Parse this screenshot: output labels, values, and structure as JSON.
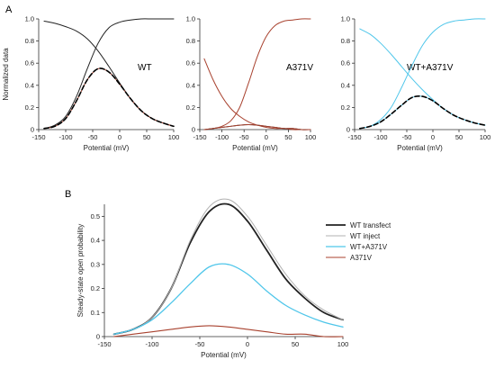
{
  "panel_labels": [
    "A",
    "B"
  ],
  "colors": {
    "axis": "#333333",
    "wt": "#222222",
    "dashed": "#000000",
    "a371v": "#a8412e",
    "wt_a371v": "#4fc6ea",
    "wt_inject": "#b0b0b0"
  },
  "chart_data": [
    {
      "type": "line",
      "panel": "A-1",
      "annotation": "WT",
      "xlabel": "Potential (mV)",
      "ylabel": "Normalized data",
      "xlim": [
        -150,
        100
      ],
      "ylim": [
        0,
        1.0
      ],
      "xticks": [
        -150,
        -100,
        -50,
        0,
        50,
        100
      ],
      "yticks": [
        0,
        0.2,
        0.4,
        0.6,
        0.8,
        1.0
      ],
      "xtick_labels": [
        "-150",
        "-100",
        "-50",
        "0",
        "50",
        "100"
      ],
      "ytick_labels": [
        "0",
        "0.2",
        "0.4",
        "0.6",
        "0.8",
        "1.0"
      ],
      "x": [
        -140,
        -120,
        -100,
        -80,
        -60,
        -40,
        -20,
        0,
        20,
        40,
        60,
        80,
        100
      ],
      "series": [
        {
          "values": [
            0.01,
            0.04,
            0.12,
            0.3,
            0.55,
            0.78,
            0.92,
            0.97,
            0.99,
            1.0,
            1.0,
            1.0,
            1.0
          ],
          "color": "#222222",
          "style": "solid"
        },
        {
          "values": [
            0.98,
            0.96,
            0.93,
            0.89,
            0.82,
            0.71,
            0.57,
            0.42,
            0.28,
            0.17,
            0.1,
            0.06,
            0.03
          ],
          "color": "#222222",
          "style": "solid"
        },
        {
          "values": [
            0.01,
            0.03,
            0.1,
            0.26,
            0.45,
            0.55,
            0.52,
            0.41,
            0.28,
            0.17,
            0.1,
            0.06,
            0.03
          ],
          "color": "#a8412e",
          "style": "solid"
        },
        {
          "values": [
            0.01,
            0.03,
            0.1,
            0.26,
            0.45,
            0.55,
            0.52,
            0.41,
            0.28,
            0.17,
            0.1,
            0.06,
            0.03
          ],
          "color": "#000000",
          "style": "dashed"
        }
      ]
    },
    {
      "type": "line",
      "panel": "A-2",
      "annotation": "A371V",
      "xlabel": "Potential (mV)",
      "ylabel": "",
      "xlim": [
        -150,
        100
      ],
      "ylim": [
        0,
        1.0
      ],
      "xticks": [
        -150,
        -100,
        -50,
        0,
        50,
        100
      ],
      "yticks": [
        0,
        0.2,
        0.4,
        0.6,
        0.8,
        1.0
      ],
      "xtick_labels": [
        "-150",
        "-100",
        "-50",
        "0",
        "50",
        "100"
      ],
      "ytick_labels": [
        "0",
        "0.2",
        "0.4",
        "0.6",
        "0.8",
        "1.0"
      ],
      "x": [
        -140,
        -120,
        -100,
        -80,
        -60,
        -40,
        -20,
        0,
        20,
        40,
        60,
        80,
        100
      ],
      "series": [
        {
          "values": [
            0.0,
            0.01,
            0.03,
            0.08,
            0.2,
            0.42,
            0.66,
            0.84,
            0.94,
            0.98,
            0.99,
            1.0,
            1.0
          ],
          "color": "#a8412e",
          "style": "solid"
        },
        {
          "values": [
            0.64,
            0.45,
            0.3,
            0.19,
            0.12,
            0.07,
            0.04,
            0.02,
            0.01,
            0.01,
            0.0,
            0.0,
            0.0
          ],
          "color": "#a8412e",
          "style": "solid"
        },
        {
          "values": [
            0.0,
            0.01,
            0.02,
            0.03,
            0.04,
            0.045,
            0.04,
            0.03,
            0.02,
            0.01,
            0.01,
            0.0,
            0.0
          ],
          "color": "#222222",
          "style": "solid"
        },
        {
          "values": [
            0.0,
            0.01,
            0.02,
            0.03,
            0.04,
            0.045,
            0.04,
            0.03,
            0.02,
            0.01,
            0.01,
            0.0,
            0.0
          ],
          "color": "#a8412e",
          "style": "solid"
        }
      ]
    },
    {
      "type": "line",
      "panel": "A-3",
      "annotation": "WT+A371V",
      "xlabel": "Potential (mV)",
      "ylabel": "",
      "xlim": [
        -150,
        100
      ],
      "ylim": [
        0,
        1.0
      ],
      "xticks": [
        -150,
        -100,
        -50,
        0,
        50,
        100
      ],
      "yticks": [
        0,
        0.2,
        0.4,
        0.6,
        0.8,
        1.0
      ],
      "xtick_labels": [
        "-150",
        "-100",
        "-50",
        "0",
        "50",
        "100"
      ],
      "ytick_labels": [
        "0",
        "0.2",
        "0.4",
        "0.6",
        "0.8",
        "1.0"
      ],
      "x": [
        -140,
        -120,
        -100,
        -80,
        -60,
        -40,
        -20,
        0,
        20,
        40,
        60,
        80,
        100
      ],
      "series": [
        {
          "values": [
            0.01,
            0.03,
            0.09,
            0.2,
            0.38,
            0.58,
            0.76,
            0.88,
            0.95,
            0.98,
            0.99,
            1.0,
            1.0
          ],
          "color": "#4fc6ea",
          "style": "solid"
        },
        {
          "values": [
            0.91,
            0.86,
            0.78,
            0.68,
            0.57,
            0.46,
            0.36,
            0.27,
            0.19,
            0.13,
            0.09,
            0.06,
            0.04
          ],
          "color": "#4fc6ea",
          "style": "solid"
        },
        {
          "values": [
            0.01,
            0.03,
            0.07,
            0.14,
            0.22,
            0.29,
            0.3,
            0.26,
            0.19,
            0.13,
            0.09,
            0.06,
            0.04
          ],
          "color": "#4fc6ea",
          "style": "solid"
        },
        {
          "values": [
            0.01,
            0.03,
            0.07,
            0.14,
            0.22,
            0.29,
            0.3,
            0.26,
            0.19,
            0.13,
            0.09,
            0.06,
            0.04
          ],
          "color": "#000000",
          "style": "dashed"
        }
      ]
    },
    {
      "type": "line",
      "panel": "B",
      "xlabel": "Potential (mV)",
      "ylabel": "Steady-state open probability",
      "xlim": [
        -150,
        100
      ],
      "ylim": [
        0,
        0.55
      ],
      "xticks": [
        -150,
        -100,
        -50,
        0,
        50,
        100
      ],
      "yticks": [
        0,
        0.1,
        0.2,
        0.3,
        0.4,
        0.5
      ],
      "xtick_labels": [
        "-150",
        "-100",
        "-50",
        "0",
        "50",
        "100"
      ],
      "ytick_labels": [
        "0",
        "0.1",
        "0.2",
        "0.3",
        "0.4",
        "0.5"
      ],
      "legend": "right",
      "x": [
        -140,
        -120,
        -100,
        -80,
        -60,
        -40,
        -20,
        0,
        20,
        40,
        60,
        80,
        100
      ],
      "series": [
        {
          "name": "WT transfect",
          "values": [
            0.01,
            0.03,
            0.08,
            0.2,
            0.39,
            0.52,
            0.55,
            0.48,
            0.36,
            0.24,
            0.16,
            0.1,
            0.07
          ],
          "color": "#222222",
          "width": 1.8
        },
        {
          "name": "WT inject",
          "values": [
            0.01,
            0.03,
            0.08,
            0.2,
            0.4,
            0.54,
            0.57,
            0.5,
            0.38,
            0.26,
            0.17,
            0.11,
            0.07
          ],
          "color": "#b0b0b0",
          "width": 1.0
        },
        {
          "name": "WT+A371V",
          "values": [
            0.01,
            0.03,
            0.07,
            0.14,
            0.22,
            0.29,
            0.3,
            0.26,
            0.19,
            0.13,
            0.09,
            0.06,
            0.04
          ],
          "color": "#4fc6ea",
          "width": 1.3
        },
        {
          "name": "A371V",
          "values": [
            0.0,
            0.01,
            0.02,
            0.03,
            0.04,
            0.045,
            0.04,
            0.03,
            0.02,
            0.01,
            0.01,
            0.0,
            0.0
          ],
          "color": "#a8412e",
          "width": 1.1
        }
      ]
    }
  ]
}
